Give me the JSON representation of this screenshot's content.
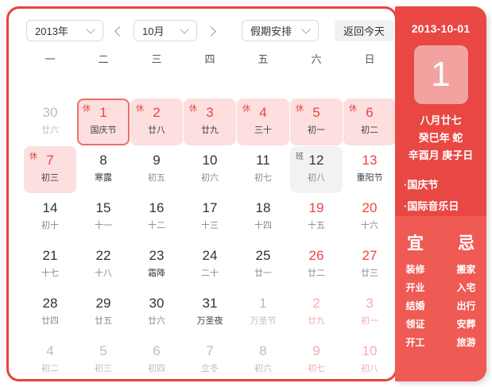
{
  "toolbar": {
    "year": "2013年",
    "month": "10月",
    "holiday_select": "假期安排",
    "today_button": "返回今天"
  },
  "calendar": {
    "weekdays": [
      "一",
      "二",
      "三",
      "四",
      "五",
      "六",
      "日"
    ],
    "rest_badge": "休",
    "work_badge": "班",
    "cells": [
      {
        "day": "30",
        "sub": "廿六",
        "cls": "prev"
      },
      {
        "day": "1",
        "sub": "国庆节",
        "badge": "休",
        "cls": "holiday selected"
      },
      {
        "day": "2",
        "sub": "廿八",
        "badge": "休",
        "cls": "holiday"
      },
      {
        "day": "3",
        "sub": "廿九",
        "badge": "休",
        "cls": "holiday"
      },
      {
        "day": "4",
        "sub": "三十",
        "badge": "休",
        "cls": "holiday"
      },
      {
        "day": "5",
        "sub": "初一",
        "badge": "休",
        "cls": "holiday"
      },
      {
        "day": "6",
        "sub": "初二",
        "badge": "休",
        "cls": "holiday"
      },
      {
        "day": "7",
        "sub": "初三",
        "badge": "休",
        "cls": "holiday"
      },
      {
        "day": "8",
        "sub": "寒露",
        "cls": "normal",
        "subDark": true
      },
      {
        "day": "9",
        "sub": "初五",
        "cls": "normal"
      },
      {
        "day": "10",
        "sub": "初六",
        "cls": "normal"
      },
      {
        "day": "11",
        "sub": "初七",
        "cls": "normal"
      },
      {
        "day": "12",
        "sub": "初八",
        "badge": "班",
        "cls": "work"
      },
      {
        "day": "13",
        "sub": "重阳节",
        "cls": "weekend",
        "subDark": true
      },
      {
        "day": "14",
        "sub": "初十",
        "cls": "normal"
      },
      {
        "day": "15",
        "sub": "十一",
        "cls": "normal"
      },
      {
        "day": "16",
        "sub": "十二",
        "cls": "normal"
      },
      {
        "day": "17",
        "sub": "十三",
        "cls": "normal"
      },
      {
        "day": "18",
        "sub": "十四",
        "cls": "normal"
      },
      {
        "day": "19",
        "sub": "十五",
        "cls": "weekend"
      },
      {
        "day": "20",
        "sub": "十六",
        "cls": "weekend"
      },
      {
        "day": "21",
        "sub": "十七",
        "cls": "normal"
      },
      {
        "day": "22",
        "sub": "十八",
        "cls": "normal"
      },
      {
        "day": "23",
        "sub": "霜降",
        "cls": "normal",
        "subDark": true
      },
      {
        "day": "24",
        "sub": "二十",
        "cls": "normal"
      },
      {
        "day": "25",
        "sub": "廿一",
        "cls": "normal"
      },
      {
        "day": "26",
        "sub": "廿二",
        "cls": "weekend"
      },
      {
        "day": "27",
        "sub": "廿三",
        "cls": "weekend"
      },
      {
        "day": "28",
        "sub": "廿四",
        "cls": "normal"
      },
      {
        "day": "29",
        "sub": "廿五",
        "cls": "normal"
      },
      {
        "day": "30",
        "sub": "廿六",
        "cls": "normal"
      },
      {
        "day": "31",
        "sub": "万圣夜",
        "cls": "normal",
        "subDark": true
      },
      {
        "day": "1",
        "sub": "万圣节",
        "cls": "next"
      },
      {
        "day": "2",
        "sub": "廿九",
        "cls": "next-weekend"
      },
      {
        "day": "3",
        "sub": "初一",
        "cls": "next-weekend"
      },
      {
        "day": "4",
        "sub": "初二",
        "cls": "next"
      },
      {
        "day": "5",
        "sub": "初三",
        "cls": "next"
      },
      {
        "day": "6",
        "sub": "初四",
        "cls": "next"
      },
      {
        "day": "7",
        "sub": "立冬",
        "cls": "next"
      },
      {
        "day": "8",
        "sub": "初六",
        "cls": "next"
      },
      {
        "day": "9",
        "sub": "初七",
        "cls": "next-weekend"
      },
      {
        "day": "10",
        "sub": "初八",
        "cls": "next-weekend"
      }
    ]
  },
  "side": {
    "date": "2013-10-01",
    "day": "1",
    "lunar": "八月廿七",
    "ganzhi_year": "癸巳年 蛇",
    "ganzhi_day": "辛酉月 庚子日",
    "bullet": "·",
    "festivals": [
      "国庆节",
      "国际音乐日"
    ],
    "yi_title": "宜",
    "ji_title": "忌",
    "yi": [
      "装修",
      "开业",
      "结婚",
      "领证",
      "开工"
    ],
    "ji": [
      "搬家",
      "入宅",
      "出行",
      "安葬",
      "旅游"
    ]
  },
  "colors": {
    "accent_red": "#e94743",
    "accent_red_light": "#ef5a54",
    "border_red": "#e8423e",
    "holiday_cell_pink": "#fcdfde",
    "red_number": "#ef4341",
    "big_day_square": "#f2a3a0",
    "work_cell_gray": "#f2f2f2"
  }
}
